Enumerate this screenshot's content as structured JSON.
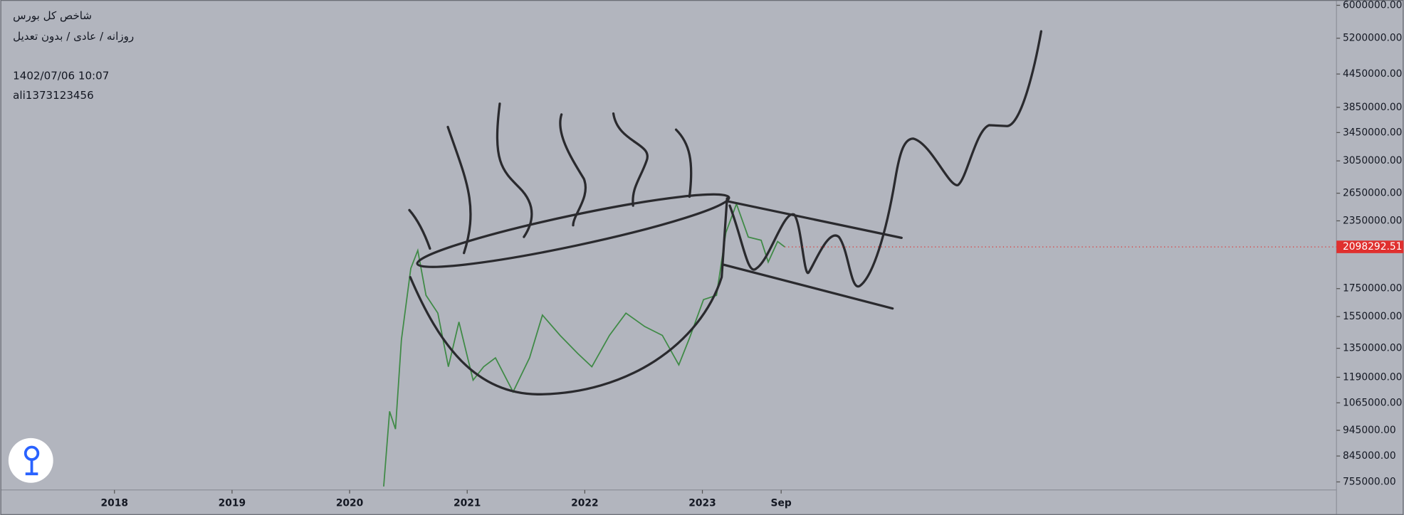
{
  "chart_data": {
    "type": "line",
    "title": "شاخص کل بورس",
    "subtitle": "روزانه / عادی / بدون تعدیل",
    "annotations": [
      "1402/07/06 10:07",
      "ali1373123456"
    ],
    "log_scale": true,
    "color": "#3f8a46",
    "last_color": "#e0302f",
    "x": [
      2020.29,
      2020.34,
      2020.39,
      2020.44,
      2020.52,
      2020.58,
      2020.65,
      2020.75,
      2020.84,
      2020.93,
      2021.05,
      2021.14,
      2021.24,
      2021.39,
      2021.53,
      2021.64,
      2021.79,
      2021.94,
      2022.06,
      2022.21,
      2022.35,
      2022.51,
      2022.66,
      2022.8,
      2022.89,
      2023.01,
      2023.12,
      2023.2,
      2023.29,
      2023.39,
      2023.5,
      2023.56,
      2023.64,
      2023.7
    ],
    "values": [
      740000,
      1026000,
      950000,
      1400000,
      1911000,
      2066000,
      1700000,
      1573000,
      1246000,
      1514000,
      1175000,
      1246000,
      1295000,
      1117000,
      1295000,
      1560000,
      1428000,
      1320000,
      1246000,
      1428000,
      1573000,
      1484000,
      1428000,
      1256000,
      1411000,
      1668000,
      1700000,
      2233000,
      2529000,
      2190000,
      2160000,
      1964000,
      2148000,
      2098292.51
    ],
    "xlim": [
      2017.03,
      2028.37
    ],
    "xticks": [
      2018,
      2019,
      2020,
      2021,
      2022,
      2023,
      {
        "value": 2023.67,
        "label": "Sep"
      }
    ],
    "ylim": [
      729000,
      6140000
    ],
    "yticks": [
      {
        "value": 6000000,
        "label": "6000000.00"
      },
      {
        "value": 5200000,
        "label": "5200000.00"
      },
      {
        "value": 4450000,
        "label": "4450000.00"
      },
      {
        "value": 3850000,
        "label": "3850000.00"
      },
      {
        "value": 3450000,
        "label": "3450000.00"
      },
      {
        "value": 3050000,
        "label": "3050000.00"
      },
      {
        "value": 2650000,
        "label": "2650000.00"
      },
      {
        "value": 2350000,
        "label": "2350000.00"
      },
      {
        "value": 1750000,
        "label": "1750000.00"
      },
      {
        "value": 1550000,
        "label": "1550000.00"
      },
      {
        "value": 1350000,
        "label": "1350000.00"
      },
      {
        "value": 1190000,
        "label": "1190000.00"
      },
      {
        "value": 1065000,
        "label": "1065000.00"
      },
      {
        "value": 945000,
        "label": "945000.00"
      },
      {
        "value": 845000,
        "label": "845000.00"
      },
      {
        "value": 755000,
        "label": "755000.00"
      }
    ]
  }
}
